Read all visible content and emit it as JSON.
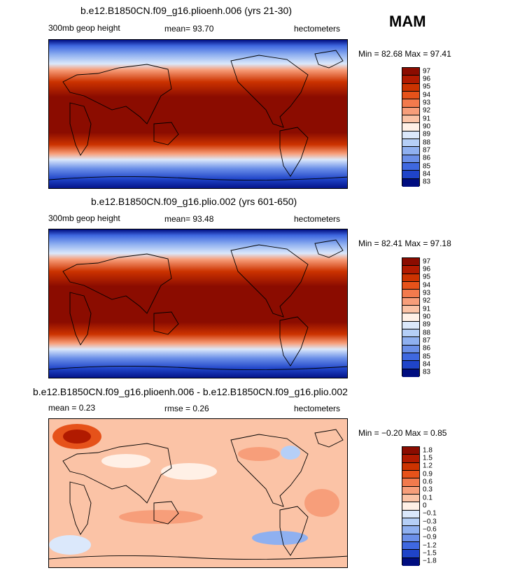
{
  "season": "MAM",
  "panels": [
    {
      "title": "b.e12.B1850CN.f09_g16.plioenh.006 (yrs 21-30)",
      "left_label": "300mb geop height",
      "stat1": "mean=  93.70",
      "stat2": "",
      "units": "hectometers",
      "minmax": "Min =  82.68  Max =  97.41",
      "colorbar_labels": [
        "97",
        "96",
        "95",
        "94",
        "93",
        "92",
        "91",
        "90",
        "89",
        "88",
        "87",
        "86",
        "85",
        "84",
        "83"
      ],
      "colorbar_colors": [
        "#8b0c00",
        "#b11a00",
        "#cc3300",
        "#e6521a",
        "#f27a4d",
        "#f79e7a",
        "#fbc3a6",
        "#fff0e6",
        "#dbe8fb",
        "#b5cff7",
        "#8fb0f0",
        "#6b8fe8",
        "#3f68e0",
        "#1f44c9",
        "#000d80"
      ]
    },
    {
      "title": "b.e12.B1850CN.f09_g16.plio.002 (yrs 601-650)",
      "left_label": "300mb geop height",
      "stat1": "mean=  93.48",
      "stat2": "",
      "units": "hectometers",
      "minmax": "Min =  82.41  Max =  97.18",
      "colorbar_labels": [
        "97",
        "96",
        "95",
        "94",
        "93",
        "92",
        "91",
        "90",
        "89",
        "88",
        "87",
        "86",
        "85",
        "84",
        "83"
      ],
      "colorbar_colors": [
        "#8b0c00",
        "#b11a00",
        "#cc3300",
        "#e6521a",
        "#f27a4d",
        "#f79e7a",
        "#fbc3a6",
        "#fff0e6",
        "#dbe8fb",
        "#b5cff7",
        "#8fb0f0",
        "#6b8fe8",
        "#3f68e0",
        "#1f44c9",
        "#000d80"
      ]
    },
    {
      "title": "b.e12.B1850CN.f09_g16.plioenh.006 - b.e12.B1850CN.f09_g16.plio.002",
      "left_label": "mean =   0.23",
      "stat1": "rmse =   0.26",
      "stat2": "",
      "units": "hectometers",
      "minmax": "Min =  −0.20  Max =    0.85",
      "colorbar_labels": [
        "1.8",
        "1.5",
        "1.2",
        "0.9",
        "0.6",
        "0.3",
        "0.1",
        "0",
        "−0.1",
        "−0.3",
        "−0.6",
        "−0.9",
        "−1.2",
        "−1.5",
        "−1.8"
      ],
      "colorbar_colors": [
        "#8b0c00",
        "#b11a00",
        "#cc3300",
        "#e6521a",
        "#f27a4d",
        "#f79e7a",
        "#fbc3a6",
        "#fff0e6",
        "#dbe8fb",
        "#b5cff7",
        "#8fb0f0",
        "#6b8fe8",
        "#3f68e0",
        "#1f44c9",
        "#000d80"
      ]
    }
  ]
}
